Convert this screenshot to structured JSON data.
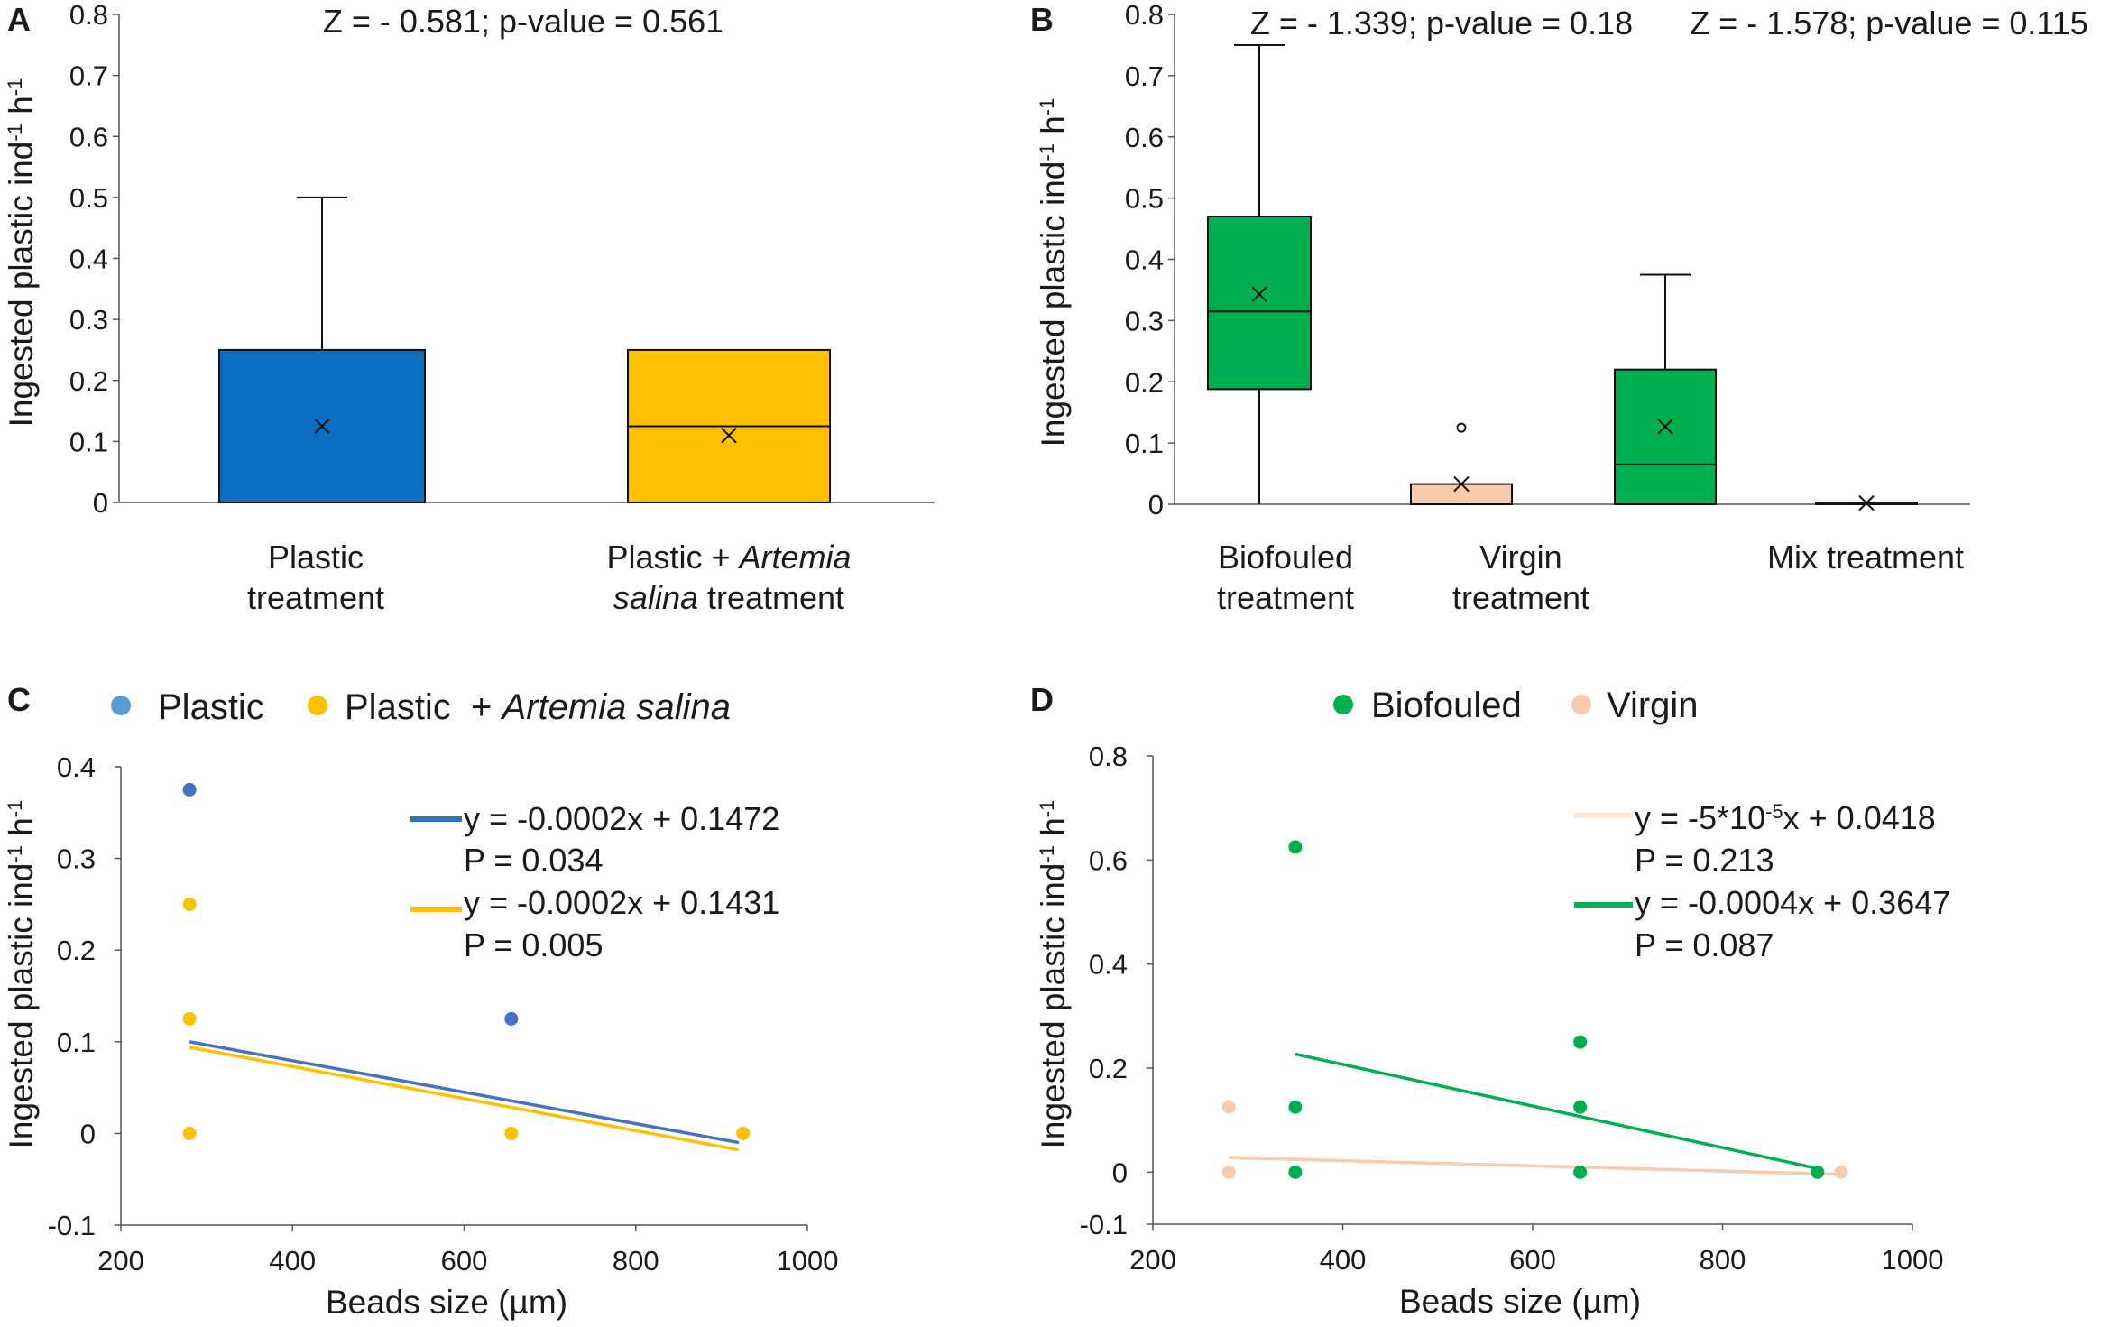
{
  "chart_data": [
    {
      "panel": "A",
      "type": "box",
      "ylabel": "Ingested plastic ind-1 h-1",
      "ylabel_main": "Ingested plastic ind",
      "ylabel_sup1": "-1",
      "ylabel_mid": " h",
      "ylabel_sup2": "-1",
      "ylim": [
        0,
        0.8
      ],
      "ticks": [
        "0",
        "0.1",
        "0.2",
        "0.3",
        "0.4",
        "0.5",
        "0.6",
        "0.7",
        "0.8"
      ],
      "stats": [
        "Z = - 0.581; p-value = 0.561"
      ],
      "categories": [
        {
          "line1": "Plastic",
          "line2": "treatment",
          "italic": "",
          "line2_rest": ""
        },
        {
          "line1": "Plastic + ",
          "line1_italic": "Artemia",
          "line2_italic": "salina",
          "line2_rest": " treatment"
        }
      ],
      "boxes": [
        {
          "name": "Plastic treatment",
          "q1": 0,
          "median": 0,
          "q3": 0.25,
          "min": 0,
          "max": 0.5,
          "mean": 0.125,
          "color": "#0a6fc2",
          "outliers": []
        },
        {
          "name": "Plastic + Artemia salina treatment",
          "q1": 0,
          "median": 0.125,
          "q3": 0.25,
          "min": 0,
          "max": 0.25,
          "mean": 0.11,
          "color": "#ffc000",
          "outliers": []
        }
      ]
    },
    {
      "panel": "B",
      "type": "box",
      "ylabel": "Ingested plastic ind-1 h-1",
      "ylabel_main": "Ingested plastic ind",
      "ylabel_sup1": "-1",
      "ylabel_mid": " h",
      "ylabel_sup2": "-1",
      "ylim": [
        0,
        0.8
      ],
      "ticks": [
        "0",
        "0.1",
        "0.2",
        "0.3",
        "0.4",
        "0.5",
        "0.6",
        "0.7",
        "0.8"
      ],
      "stats": [
        "Z = - 1.339; p-value = 0.18",
        "Z = - 1.578; p-value = 0.115"
      ],
      "categories": [
        {
          "line1": "Biofouled",
          "line2": "treatment"
        },
        {
          "line1": "Virgin",
          "line2": "treatment"
        },
        {
          "line1": "Mix treatment",
          "line2": ""
        }
      ],
      "boxes": [
        {
          "name": "Biofouled treatment",
          "q1": 0.188,
          "median": 0.315,
          "q3": 0.47,
          "min": 0,
          "max": 0.75,
          "mean": 0.343,
          "color": "#00b050",
          "outliers": []
        },
        {
          "name": "Virgin treatment",
          "q1": 0,
          "median": 0,
          "q3": 0.033,
          "min": 0,
          "max": 0.033,
          "mean": 0.033,
          "color": "#f8cbad",
          "outliers": [
            0.125
          ]
        },
        {
          "name": "Mix treatment (green)",
          "q1": 0,
          "median": 0.065,
          "q3": 0.22,
          "min": 0,
          "max": 0.375,
          "mean": 0.127,
          "color": "#00b050",
          "outliers": []
        },
        {
          "name": "Mix treatment (virgin)",
          "q1": 0,
          "median": 0,
          "q3": 0.003,
          "min": 0,
          "max": 0.003,
          "mean": 0.002,
          "color": "#f8cbad",
          "outliers": []
        }
      ]
    },
    {
      "panel": "C",
      "type": "scatter",
      "xlabel": "Beads size (µm)",
      "ylabel": "Ingested plastic ind-1 h-1",
      "ylabel_main": "Ingested plastic ind",
      "ylabel_sup1": "-1",
      "ylabel_mid": " h",
      "ylabel_sup2": "-1",
      "xlim": [
        200,
        1000
      ],
      "ylim": [
        -0.1,
        0.4
      ],
      "xticks": [
        "200",
        "400",
        "600",
        "800",
        "1000"
      ],
      "yticks": [
        "-0.1",
        "0",
        "0.1",
        "0.2",
        "0.3",
        "0.4"
      ],
      "legend": [
        {
          "name": "Plastic",
          "color": "#5b9bd5",
          "italic": ""
        },
        {
          "name": "Plastic  + ",
          "color": "#ffc000",
          "italic": "Artemia salina"
        }
      ],
      "series": [
        {
          "name": "Plastic",
          "color": "#4472c4",
          "points": [
            [
              280,
              0.375
            ],
            [
              655,
              0.125
            ]
          ],
          "fit": {
            "x": [
              280,
              920
            ],
            "y": [
              0.1,
              -0.01
            ],
            "color": "#4472c4"
          }
        },
        {
          "name": "Plastic + Artemia salina",
          "color": "#ffc000",
          "points": [
            [
              280,
              0.25
            ],
            [
              280,
              0.125
            ],
            [
              280,
              0.0
            ],
            [
              655,
              0.0
            ],
            [
              925,
              0.0
            ]
          ],
          "fit": {
            "x": [
              280,
              920
            ],
            "y": [
              0.094,
              -0.018
            ],
            "color": "#ffc000"
          }
        }
      ],
      "equations": [
        {
          "eq": "y = -0.0002x + 0.1472",
          "p": "P = 0.034",
          "color": "#2e75b6"
        },
        {
          "eq": "y = -0.0002x + 0.1431",
          "p": "P = 0.005",
          "color": "#ffc000"
        }
      ]
    },
    {
      "panel": "D",
      "type": "scatter",
      "xlabel": "Beads size (µm)",
      "ylabel": "Ingested plastic ind-1 h-1",
      "ylabel_main": "Ingested plastic ind",
      "ylabel_sup1": "-1",
      "ylabel_mid": " h",
      "ylabel_sup2": "-1",
      "xlim": [
        200,
        1000
      ],
      "ylim": [
        -0.1,
        0.8
      ],
      "xticks": [
        "200",
        "400",
        "600",
        "800",
        "1000"
      ],
      "yticks": [
        "-0.1",
        "0",
        "0.2",
        "0.4",
        "0.6",
        "0.8"
      ],
      "ytick_values": [
        -0.1,
        0,
        0.2,
        0.4,
        0.6,
        0.8
      ],
      "legend": [
        {
          "name": "Biofouled",
          "color": "#00b050",
          "italic": ""
        },
        {
          "name": "Virgin",
          "color": "#f8cbad",
          "italic": ""
        }
      ],
      "series": [
        {
          "name": "Biofouled",
          "color": "#00b050",
          "points": [
            [
              350,
              0.625
            ],
            [
              350,
              0.125
            ],
            [
              350,
              0.0
            ],
            [
              650,
              0.25
            ],
            [
              650,
              0.125
            ],
            [
              650,
              0.0
            ],
            [
              900,
              0.0
            ]
          ],
          "fit": {
            "x": [
              350,
              900
            ],
            "y": [
              0.227,
              0.007
            ],
            "color": "#00b050"
          }
        },
        {
          "name": "Virgin",
          "color": "#f8cbad",
          "points": [
            [
              280,
              0.125
            ],
            [
              280,
              0.0
            ],
            [
              925,
              0.0
            ]
          ],
          "fit": {
            "x": [
              280,
              925
            ],
            "y": [
              0.028,
              -0.004
            ],
            "color": "#f8cbad"
          }
        }
      ],
      "equations": [
        {
          "eq_pre": "y = -5*10",
          "eq_sup": "-5",
          "eq_post": "x + 0.0418",
          "p": "P = 0.213",
          "color": "#fbe5d6"
        },
        {
          "eq": "y = -0.0004x + 0.3647",
          "p": "P = 0.087",
          "color": "#00b050"
        }
      ]
    }
  ]
}
